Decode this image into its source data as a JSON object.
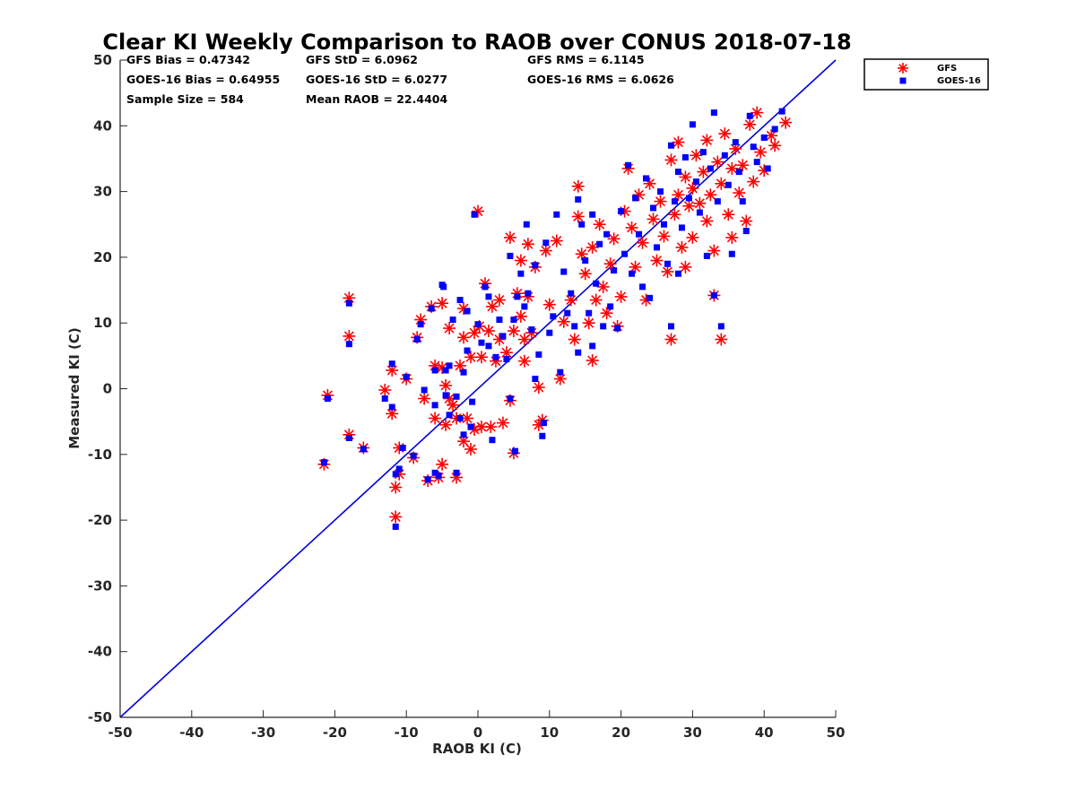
{
  "chart_data": {
    "type": "scatter",
    "title": "Clear KI Weekly Comparison to RAOB over CONUS 2018-07-18",
    "xlabel": "RAOB KI (C)",
    "ylabel": "Measured KI (C)",
    "xlim": [
      -50,
      50
    ],
    "ylim": [
      -50,
      50
    ],
    "xticks": [
      "-50",
      "-40",
      "-30",
      "-20",
      "-10",
      "0",
      "10",
      "20",
      "30",
      "40",
      "50"
    ],
    "yticks": [
      "-50",
      "-40",
      "-30",
      "-20",
      "-10",
      "0",
      "10",
      "20",
      "30",
      "40",
      "50"
    ],
    "grid": false,
    "legend_position": "outside-top-right",
    "reference_line": {
      "name": "1:1 line",
      "color": "#0000dd"
    },
    "stats": {
      "gfs_bias": "GFS Bias = 0.47342",
      "goes_bias": "GOES-16 Bias = 0.64955",
      "sample_size": "Sample Size = 584",
      "gfs_std": "GFS StD = 6.0962",
      "goes_std": "GOES-16 StD = 6.0277",
      "mean_raob": "Mean RAOB = 22.4404",
      "gfs_rms": "GFS RMS = 6.1145",
      "goes_rms": "GOES-16 RMS = 6.0626"
    },
    "series": [
      {
        "name": "GFS",
        "marker": "asterisk",
        "color": "#ff0000",
        "points": [
          [
            -21.5,
            -11.5
          ],
          [
            -21,
            -1
          ],
          [
            -18,
            13.8
          ],
          [
            -18,
            8
          ],
          [
            -18,
            -7
          ],
          [
            -16,
            -9
          ],
          [
            -13,
            -0.2
          ],
          [
            -12,
            2.8
          ],
          [
            -12,
            -3.8
          ],
          [
            -11.5,
            -15
          ],
          [
            -11.5,
            -19.5
          ],
          [
            -11,
            -13
          ],
          [
            -11,
            -9
          ],
          [
            -10,
            1.5
          ],
          [
            -9,
            -10.5
          ],
          [
            -8.5,
            7.8
          ],
          [
            -8,
            10.5
          ],
          [
            -7.5,
            -1.5
          ],
          [
            -7,
            -14
          ],
          [
            -6.5,
            12.5
          ],
          [
            -6,
            3.5
          ],
          [
            -6,
            -4.5
          ],
          [
            -5.5,
            -13.5
          ],
          [
            -5,
            -11.5
          ],
          [
            -5,
            13
          ],
          [
            -5,
            3.2
          ],
          [
            -4.5,
            0.5
          ],
          [
            -4.5,
            -5.5
          ],
          [
            -4,
            -1.5
          ],
          [
            -4,
            9.2
          ],
          [
            -3.5,
            -2.5
          ],
          [
            -3,
            -4.5
          ],
          [
            -3,
            -13.5
          ],
          [
            -2.5,
            3.5
          ],
          [
            -2,
            12.2
          ],
          [
            -2,
            7.8
          ],
          [
            -2,
            -8
          ],
          [
            -1.5,
            -4.5
          ],
          [
            -1,
            4.8
          ],
          [
            -1,
            -9.2
          ],
          [
            -0.5,
            8.5
          ],
          [
            -0.5,
            -6.2
          ],
          [
            0,
            27
          ],
          [
            0.2,
            9.5
          ],
          [
            0.5,
            4.8
          ],
          [
            0.5,
            -5.8
          ],
          [
            1,
            16
          ],
          [
            1.5,
            8.8
          ],
          [
            1.8,
            -5.8
          ],
          [
            2,
            12.5
          ],
          [
            2.5,
            4.2
          ],
          [
            3,
            7.5
          ],
          [
            3,
            13.5
          ],
          [
            3.5,
            -5.2
          ],
          [
            4,
            5.5
          ],
          [
            4.5,
            -1.8
          ],
          [
            4.5,
            23
          ],
          [
            5,
            8.8
          ],
          [
            5,
            -9.8
          ],
          [
            5.5,
            14.5
          ],
          [
            6,
            11
          ],
          [
            6,
            19.5
          ],
          [
            6.5,
            4.2
          ],
          [
            6.5,
            7.5
          ],
          [
            7,
            22
          ],
          [
            7,
            14
          ],
          [
            7.5,
            8.5
          ],
          [
            8,
            18.5
          ],
          [
            8.5,
            0.2
          ],
          [
            8.5,
            -5.5
          ],
          [
            9,
            -4.8
          ],
          [
            9.5,
            21
          ],
          [
            10,
            12.8
          ],
          [
            11,
            22.5
          ],
          [
            11.5,
            1.5
          ],
          [
            12,
            10.2
          ],
          [
            13,
            13.5
          ],
          [
            13.5,
            7.5
          ],
          [
            14,
            30.8
          ],
          [
            14,
            26.2
          ],
          [
            14.5,
            20.5
          ],
          [
            15,
            17.5
          ],
          [
            15.5,
            10
          ],
          [
            16,
            4.3
          ],
          [
            16,
            21.5
          ],
          [
            16.5,
            13.5
          ],
          [
            17,
            25
          ],
          [
            17.5,
            15.5
          ],
          [
            18,
            11.5
          ],
          [
            18.5,
            19
          ],
          [
            19,
            22.8
          ],
          [
            19.5,
            9.5
          ],
          [
            20,
            14
          ],
          [
            20.5,
            27
          ],
          [
            21,
            33.5
          ],
          [
            21.5,
            24.5
          ],
          [
            22,
            18.5
          ],
          [
            22.5,
            29.5
          ],
          [
            23,
            22.2
          ],
          [
            23.5,
            13.5
          ],
          [
            24,
            31.2
          ],
          [
            24.5,
            25.8
          ],
          [
            25,
            19.5
          ],
          [
            25.5,
            28.5
          ],
          [
            26,
            23.2
          ],
          [
            26.5,
            17.8
          ],
          [
            27,
            7.5
          ],
          [
            27,
            34.8
          ],
          [
            27.5,
            26.5
          ],
          [
            28,
            29.5
          ],
          [
            28,
            37.5
          ],
          [
            28.5,
            21.5
          ],
          [
            29,
            18.5
          ],
          [
            29,
            32.2
          ],
          [
            29.5,
            27.8
          ],
          [
            30,
            30.5
          ],
          [
            30,
            23
          ],
          [
            30.5,
            35.5
          ],
          [
            31,
            28.2
          ],
          [
            31.5,
            33
          ],
          [
            32,
            25.5
          ],
          [
            32,
            37.8
          ],
          [
            32.5,
            29.5
          ],
          [
            33,
            14.2
          ],
          [
            33,
            21
          ],
          [
            33.5,
            34.5
          ],
          [
            34,
            7.5
          ],
          [
            34,
            31.2
          ],
          [
            34.5,
            38.8
          ],
          [
            35,
            26.5
          ],
          [
            35.5,
            23
          ],
          [
            35.5,
            33.5
          ],
          [
            36,
            36.5
          ],
          [
            36.5,
            29.8
          ],
          [
            37,
            34
          ],
          [
            37.5,
            25.5
          ],
          [
            38,
            40.2
          ],
          [
            38.5,
            31.5
          ],
          [
            39,
            42
          ],
          [
            39.5,
            36
          ],
          [
            40,
            33.2
          ],
          [
            41,
            38.5
          ],
          [
            41.5,
            37
          ],
          [
            43,
            40.5
          ]
        ]
      },
      {
        "name": "GOES-16",
        "marker": "square",
        "color": "#0000ff",
        "points": [
          [
            -21.5,
            -11.2
          ],
          [
            -21,
            -1.5
          ],
          [
            -18,
            13
          ],
          [
            -18,
            6.8
          ],
          [
            -18,
            -7.5
          ],
          [
            -16,
            -9.2
          ],
          [
            -13,
            -1.5
          ],
          [
            -12,
            3.8
          ],
          [
            -12,
            -2.8
          ],
          [
            -11.5,
            -21
          ],
          [
            -11.5,
            -13
          ],
          [
            -11,
            -12.2
          ],
          [
            -10.5,
            -9
          ],
          [
            -10,
            1.8
          ],
          [
            -9,
            -10.2
          ],
          [
            -8.5,
            7.5
          ],
          [
            -8,
            9.8
          ],
          [
            -7.5,
            -0.2
          ],
          [
            -7,
            -13.8
          ],
          [
            -6.5,
            12.2
          ],
          [
            -6,
            2.8
          ],
          [
            -6,
            -2.5
          ],
          [
            -6,
            -12.8
          ],
          [
            -5.5,
            -13.2
          ],
          [
            -5,
            15.8
          ],
          [
            -4.8,
            15.5
          ],
          [
            -4.5,
            -1
          ],
          [
            -4.5,
            2.8
          ],
          [
            -4,
            -4
          ],
          [
            -4,
            3.5
          ],
          [
            -3.5,
            10.5
          ],
          [
            -3,
            -1.2
          ],
          [
            -3,
            -12.8
          ],
          [
            -2.5,
            13.5
          ],
          [
            -2.5,
            -4.5
          ],
          [
            -2,
            -7
          ],
          [
            -2,
            2.5
          ],
          [
            -1.5,
            11.8
          ],
          [
            -1.5,
            5.8
          ],
          [
            -1,
            -5.8
          ],
          [
            -0.8,
            -2
          ],
          [
            -0.5,
            26.5
          ],
          [
            0,
            9.8
          ],
          [
            0.5,
            7
          ],
          [
            1,
            15.5
          ],
          [
            1.5,
            14
          ],
          [
            1.5,
            6.5
          ],
          [
            2,
            -7.8
          ],
          [
            2.5,
            4.8
          ],
          [
            3,
            10.5
          ],
          [
            3.5,
            8
          ],
          [
            4,
            4.5
          ],
          [
            4.5,
            20.2
          ],
          [
            4.5,
            -1.5
          ],
          [
            5,
            10.5
          ],
          [
            5.2,
            -9.5
          ],
          [
            5.5,
            14
          ],
          [
            6,
            17.5
          ],
          [
            6.5,
            12.5
          ],
          [
            6.8,
            25
          ],
          [
            7,
            14.5
          ],
          [
            7.5,
            9
          ],
          [
            8,
            1.5
          ],
          [
            8,
            18.8
          ],
          [
            8.5,
            5.2
          ],
          [
            9,
            -7.2
          ],
          [
            9.2,
            -5.2
          ],
          [
            9.5,
            22.2
          ],
          [
            10,
            8.5
          ],
          [
            10.5,
            11
          ],
          [
            11,
            26.5
          ],
          [
            11.5,
            2.5
          ],
          [
            12,
            17.8
          ],
          [
            12.5,
            11.5
          ],
          [
            13,
            14.5
          ],
          [
            13.5,
            9.5
          ],
          [
            14,
            28.8
          ],
          [
            14,
            5.5
          ],
          [
            14.5,
            25
          ],
          [
            15,
            19.5
          ],
          [
            15.5,
            11.5
          ],
          [
            16,
            26.5
          ],
          [
            16,
            6.5
          ],
          [
            16.5,
            16
          ],
          [
            17,
            22
          ],
          [
            17.5,
            9.5
          ],
          [
            18,
            23.5
          ],
          [
            18.5,
            12.5
          ],
          [
            19,
            18
          ],
          [
            19.5,
            9.2
          ],
          [
            20,
            27
          ],
          [
            20.5,
            20.5
          ],
          [
            21,
            34
          ],
          [
            21.5,
            17.5
          ],
          [
            22,
            29
          ],
          [
            22.5,
            23.5
          ],
          [
            23,
            15.5
          ],
          [
            23.5,
            32
          ],
          [
            24,
            13.8
          ],
          [
            24.5,
            27.5
          ],
          [
            25,
            21.5
          ],
          [
            25.5,
            30
          ],
          [
            26,
            25
          ],
          [
            26.5,
            19
          ],
          [
            27,
            9.5
          ],
          [
            27,
            37
          ],
          [
            27.5,
            28.5
          ],
          [
            28,
            17.5
          ],
          [
            28,
            33
          ],
          [
            28.5,
            24.5
          ],
          [
            29,
            35.2
          ],
          [
            29.5,
            29
          ],
          [
            30,
            40.2
          ],
          [
            30.5,
            31.5
          ],
          [
            31,
            26.8
          ],
          [
            31.5,
            36
          ],
          [
            32,
            20.2
          ],
          [
            32.5,
            33.5
          ],
          [
            33,
            14.2
          ],
          [
            33,
            42
          ],
          [
            33.5,
            28.5
          ],
          [
            34,
            9.5
          ],
          [
            34.5,
            35.5
          ],
          [
            35,
            31
          ],
          [
            35.5,
            20.5
          ],
          [
            36,
            37.5
          ],
          [
            36.5,
            33
          ],
          [
            37,
            28.5
          ],
          [
            37.5,
            24
          ],
          [
            38,
            41.5
          ],
          [
            38.5,
            36.8
          ],
          [
            39,
            34.5
          ],
          [
            40,
            38.2
          ],
          [
            40.5,
            33.5
          ],
          [
            41.5,
            39.5
          ],
          [
            42.5,
            42.2
          ]
        ]
      }
    ]
  }
}
